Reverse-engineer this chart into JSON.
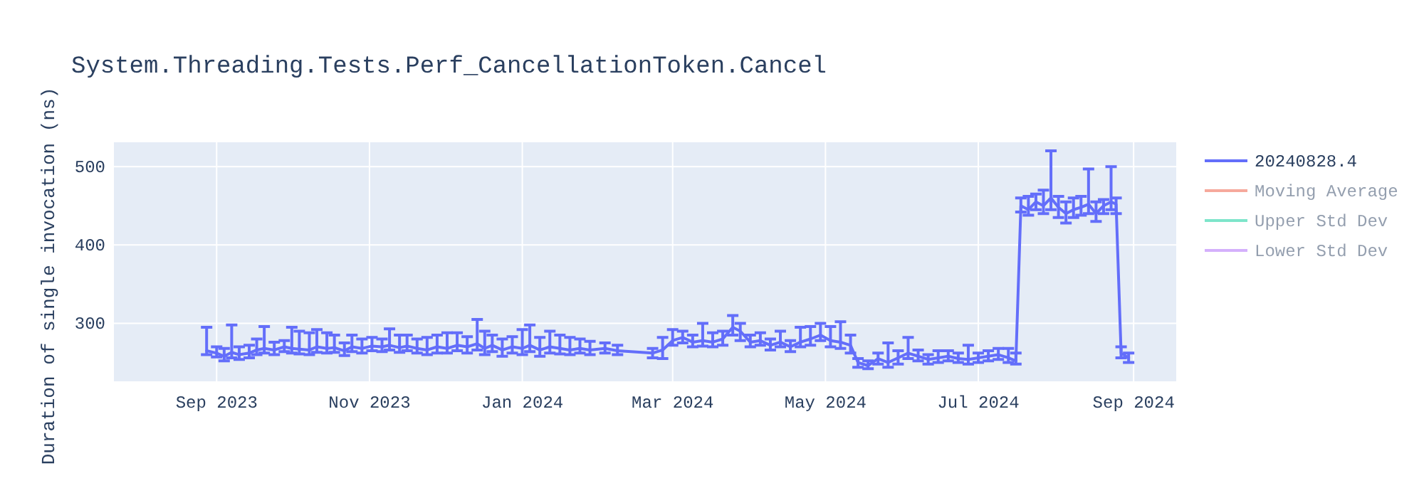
{
  "chart_data": {
    "type": "line",
    "title": "System.Threading.Tests.Perf_CancellationToken.Cancel",
    "ylabel": "Duration of single invocation (ns)",
    "xlim": [
      "2023-07-22",
      "2024-09-18"
    ],
    "ylim": [
      226,
      531
    ],
    "xticks": [
      {
        "value": "2023-09-01",
        "label": "Sep 2023"
      },
      {
        "value": "2023-11-01",
        "label": "Nov 2023"
      },
      {
        "value": "2024-01-01",
        "label": "Jan 2024"
      },
      {
        "value": "2024-03-01",
        "label": "Mar 2024"
      },
      {
        "value": "2024-05-01",
        "label": "May 2024"
      },
      {
        "value": "2024-07-01",
        "label": "Jul 2024"
      },
      {
        "value": "2024-09-01",
        "label": "Sep 2024"
      }
    ],
    "yticks": [
      300,
      400,
      500
    ],
    "grid": true,
    "legend": "right",
    "marker": "none",
    "line_style": "solid",
    "series": [
      {
        "name": "20240828.4",
        "color": "#636efa",
        "x": [
          "2023-08-28",
          "2023-09-01",
          "2023-09-04",
          "2023-09-07",
          "2023-09-10",
          "2023-09-14",
          "2023-09-17",
          "2023-09-20",
          "2023-09-24",
          "2023-09-28",
          "2023-10-01",
          "2023-10-04",
          "2023-10-08",
          "2023-10-11",
          "2023-10-15",
          "2023-10-18",
          "2023-10-22",
          "2023-10-25",
          "2023-10-29",
          "2023-11-02",
          "2023-11-06",
          "2023-11-09",
          "2023-11-13",
          "2023-11-16",
          "2023-11-20",
          "2023-11-24",
          "2023-11-28",
          "2023-12-02",
          "2023-12-06",
          "2023-12-10",
          "2023-12-14",
          "2023-12-17",
          "2023-12-20",
          "2023-12-24",
          "2023-12-28",
          "2024-01-01",
          "2024-01-04",
          "2024-01-08",
          "2024-01-12",
          "2024-01-16",
          "2024-01-20",
          "2024-01-24",
          "2024-01-28",
          "2024-02-03",
          "2024-02-08",
          "2024-02-22",
          "2024-02-26",
          "2024-03-01",
          "2024-03-05",
          "2024-03-09",
          "2024-03-13",
          "2024-03-17",
          "2024-03-21",
          "2024-03-25",
          "2024-03-28",
          "2024-04-01",
          "2024-04-05",
          "2024-04-09",
          "2024-04-13",
          "2024-04-17",
          "2024-04-21",
          "2024-04-25",
          "2024-04-29",
          "2024-05-03",
          "2024-05-07",
          "2024-05-11",
          "2024-05-14",
          "2024-05-18",
          "2024-05-22",
          "2024-05-26",
          "2024-05-30",
          "2024-06-03",
          "2024-06-07",
          "2024-06-11",
          "2024-06-15",
          "2024-06-19",
          "2024-06-23",
          "2024-06-27",
          "2024-07-01",
          "2024-07-05",
          "2024-07-09",
          "2024-07-13",
          "2024-07-16",
          "2024-07-18",
          "2024-07-21",
          "2024-07-24",
          "2024-07-27",
          "2024-07-30",
          "2024-08-02",
          "2024-08-05",
          "2024-08-08",
          "2024-08-11",
          "2024-08-14",
          "2024-08-17",
          "2024-08-20",
          "2024-08-23",
          "2024-08-25",
          "2024-08-27",
          "2024-08-30"
        ],
        "values": [
          265,
          262,
          258,
          263,
          260,
          262,
          266,
          268,
          266,
          270,
          268,
          267,
          266,
          270,
          268,
          269,
          265,
          270,
          268,
          271,
          270,
          272,
          269,
          271,
          268,
          266,
          270,
          268,
          272,
          270,
          274,
          268,
          272,
          266,
          270,
          268,
          272,
          266,
          270,
          268,
          266,
          268,
          266,
          268,
          265,
          262,
          266,
          278,
          282,
          276,
          278,
          276,
          280,
          295,
          290,
          276,
          278,
          272,
          276,
          270,
          276,
          280,
          285,
          278,
          276,
          272,
          250,
          246,
          255,
          250,
          256,
          262,
          258,
          254,
          256,
          258,
          255,
          254,
          256,
          258,
          260,
          256,
          252,
          450,
          445,
          455,
          450,
          460,
          448,
          440,
          445,
          448,
          452,
          440,
          450,
          455,
          452,
          262,
          256
        ],
        "errors": [
          [
            260,
            295
          ],
          [
            257,
            270
          ],
          [
            252,
            268
          ],
          [
            256,
            298
          ],
          [
            254,
            270
          ],
          [
            256,
            272
          ],
          [
            260,
            280
          ],
          [
            262,
            296
          ],
          [
            260,
            276
          ],
          [
            264,
            278
          ],
          [
            262,
            295
          ],
          [
            261,
            290
          ],
          [
            260,
            288
          ],
          [
            263,
            292
          ],
          [
            262,
            288
          ],
          [
            263,
            285
          ],
          [
            259,
            275
          ],
          [
            264,
            285
          ],
          [
            262,
            280
          ],
          [
            265,
            282
          ],
          [
            264,
            280
          ],
          [
            266,
            293
          ],
          [
            263,
            285
          ],
          [
            265,
            285
          ],
          [
            262,
            280
          ],
          [
            260,
            282
          ],
          [
            262,
            285
          ],
          [
            262,
            288
          ],
          [
            265,
            288
          ],
          [
            262,
            283
          ],
          [
            266,
            305
          ],
          [
            260,
            290
          ],
          [
            264,
            285
          ],
          [
            258,
            280
          ],
          [
            262,
            283
          ],
          [
            260,
            292
          ],
          [
            264,
            298
          ],
          [
            258,
            282
          ],
          [
            262,
            290
          ],
          [
            261,
            285
          ],
          [
            260,
            282
          ],
          [
            262,
            280
          ],
          [
            260,
            277
          ],
          [
            262,
            275
          ],
          [
            260,
            272
          ],
          [
            256,
            268
          ],
          [
            255,
            282
          ],
          [
            272,
            292
          ],
          [
            275,
            290
          ],
          [
            270,
            285
          ],
          [
            271,
            300
          ],
          [
            270,
            288
          ],
          [
            272,
            290
          ],
          [
            285,
            310
          ],
          [
            278,
            300
          ],
          [
            270,
            285
          ],
          [
            272,
            288
          ],
          [
            266,
            280
          ],
          [
            270,
            290
          ],
          [
            264,
            278
          ],
          [
            270,
            295
          ],
          [
            272,
            296
          ],
          [
            278,
            300
          ],
          [
            270,
            296
          ],
          [
            268,
            302
          ],
          [
            262,
            285
          ],
          [
            244,
            255
          ],
          [
            242,
            252
          ],
          [
            248,
            262
          ],
          [
            244,
            275
          ],
          [
            248,
            265
          ],
          [
            255,
            282
          ],
          [
            252,
            266
          ],
          [
            248,
            260
          ],
          [
            250,
            265
          ],
          [
            252,
            265
          ],
          [
            250,
            262
          ],
          [
            248,
            272
          ],
          [
            250,
            262
          ],
          [
            252,
            265
          ],
          [
            254,
            268
          ],
          [
            250,
            268
          ],
          [
            248,
            262
          ],
          [
            442,
            460
          ],
          [
            438,
            462
          ],
          [
            445,
            465
          ],
          [
            440,
            470
          ],
          [
            445,
            520
          ],
          [
            435,
            462
          ],
          [
            428,
            455
          ],
          [
            435,
            460
          ],
          [
            438,
            462
          ],
          [
            440,
            497
          ],
          [
            430,
            455
          ],
          [
            440,
            458
          ],
          [
            445,
            500
          ],
          [
            440,
            460
          ],
          [
            256,
            270
          ],
          [
            250,
            262
          ]
        ]
      },
      {
        "name": "Moving Average",
        "color": "#ef553b"
      },
      {
        "name": "Upper Std Dev",
        "color": "#00cc96"
      },
      {
        "name": "Lower Std Dev",
        "color": "#ab63fa"
      }
    ]
  }
}
